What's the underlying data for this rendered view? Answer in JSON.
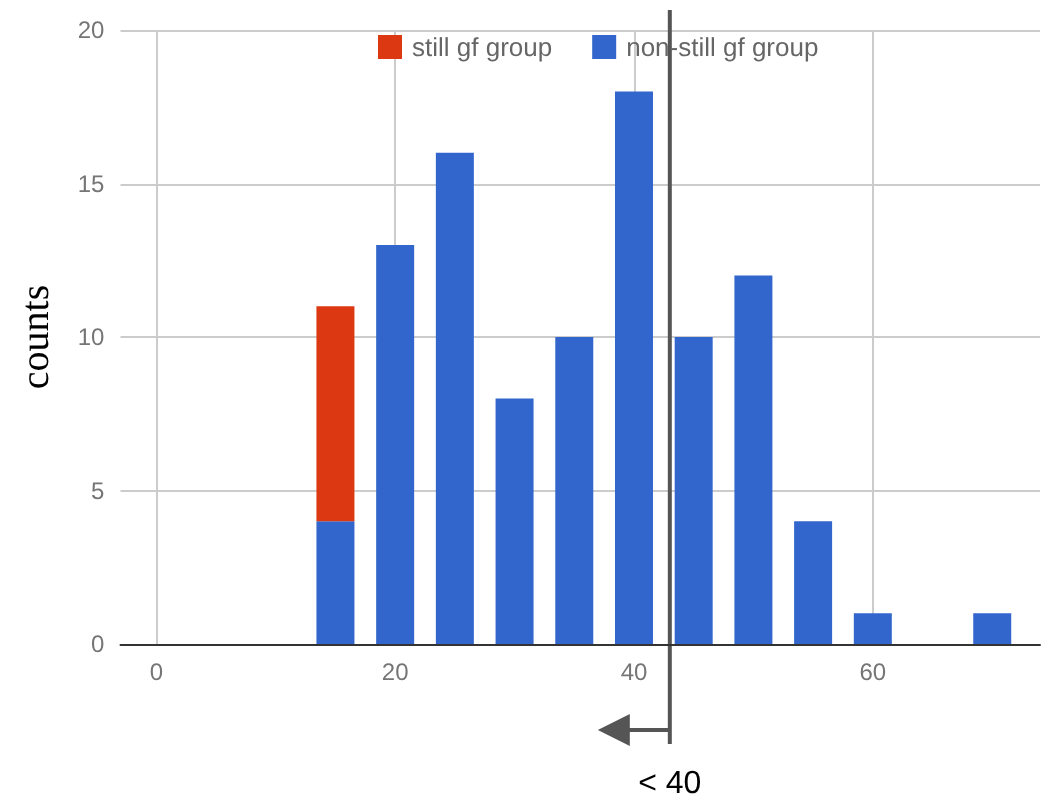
{
  "chart_data": {
    "type": "bar",
    "stacked": true,
    "ylabel": "counts",
    "x": [
      15,
      20,
      25,
      30,
      35,
      40,
      45,
      50,
      55,
      60,
      70
    ],
    "series": [
      {
        "name": "non-still gf group",
        "color": "#3366cc",
        "values": [
          4,
          13,
          16,
          8,
          10,
          18,
          10,
          12,
          4,
          1,
          1
        ]
      },
      {
        "name": "still gf group",
        "color": "#dc3912",
        "values": [
          7,
          null,
          null,
          null,
          null,
          null,
          null,
          null,
          null,
          null,
          null
        ]
      }
    ],
    "xlim": [
      -3,
      74
    ],
    "xticks": [
      0,
      20,
      40,
      60
    ],
    "ylim": [
      0,
      20
    ],
    "yticks": [
      0,
      5,
      10,
      15,
      20
    ],
    "grid": true,
    "legend": "top",
    "ref_lines": [
      {
        "axis": "x",
        "value": 43
      }
    ],
    "annotations": [
      "< 40"
    ]
  }
}
